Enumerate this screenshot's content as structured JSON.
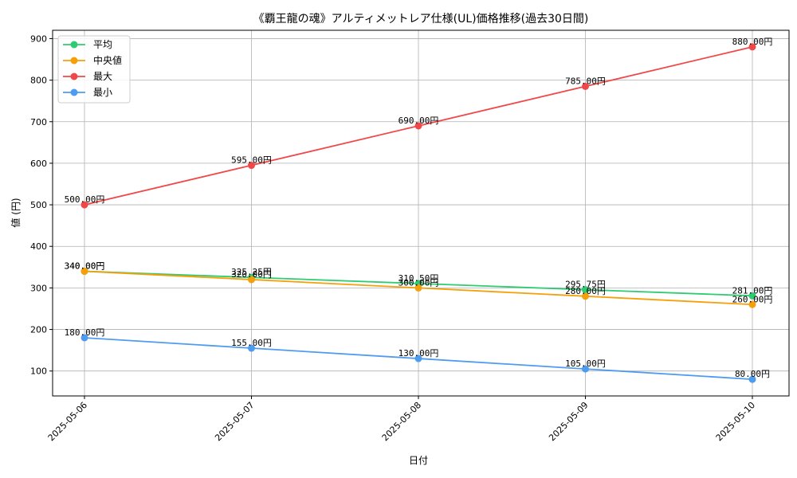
{
  "chart_data": {
    "type": "line",
    "title": "《覇王龍の魂》アルティメットレア仕様(UL)価格推移(過去30日間)",
    "xlabel": "日付",
    "ylabel": "値 (円)",
    "categories": [
      "2025-05-06",
      "2025-05-07",
      "2025-05-08",
      "2025-05-09",
      "2025-05-10"
    ],
    "ylim": [
      40,
      920
    ],
    "yticks": [
      100,
      200,
      300,
      400,
      500,
      600,
      700,
      800,
      900
    ],
    "grid": true,
    "legend_position": "top-left",
    "series": [
      {
        "name": "平均",
        "color": "#2ecc71",
        "values": [
          340.0,
          325.25,
          310.5,
          295.75,
          281.0
        ],
        "labels": [
          "340.00円",
          "325.25円",
          "310.50円",
          "295.75円",
          "281.00円"
        ]
      },
      {
        "name": "中央値",
        "color": "#f5a00a",
        "values": [
          340.0,
          320.0,
          300.0,
          280.0,
          260.0
        ],
        "labels": [
          "340.00円",
          "320.00円",
          "300.00円",
          "280.00円",
          "260.00円"
        ]
      },
      {
        "name": "最大",
        "color": "#f04848",
        "values": [
          500.0,
          595.0,
          690.0,
          785.0,
          880.0
        ],
        "labels": [
          "500.00円",
          "595.00円",
          "690.00円",
          "785.00円",
          "880.00円"
        ]
      },
      {
        "name": "最小",
        "color": "#4d9cf0",
        "values": [
          180.0,
          155.0,
          130.0,
          105.0,
          80.0
        ],
        "labels": [
          "180.00円",
          "155.00円",
          "130.00円",
          "105.00円",
          "80.00円"
        ]
      }
    ]
  }
}
